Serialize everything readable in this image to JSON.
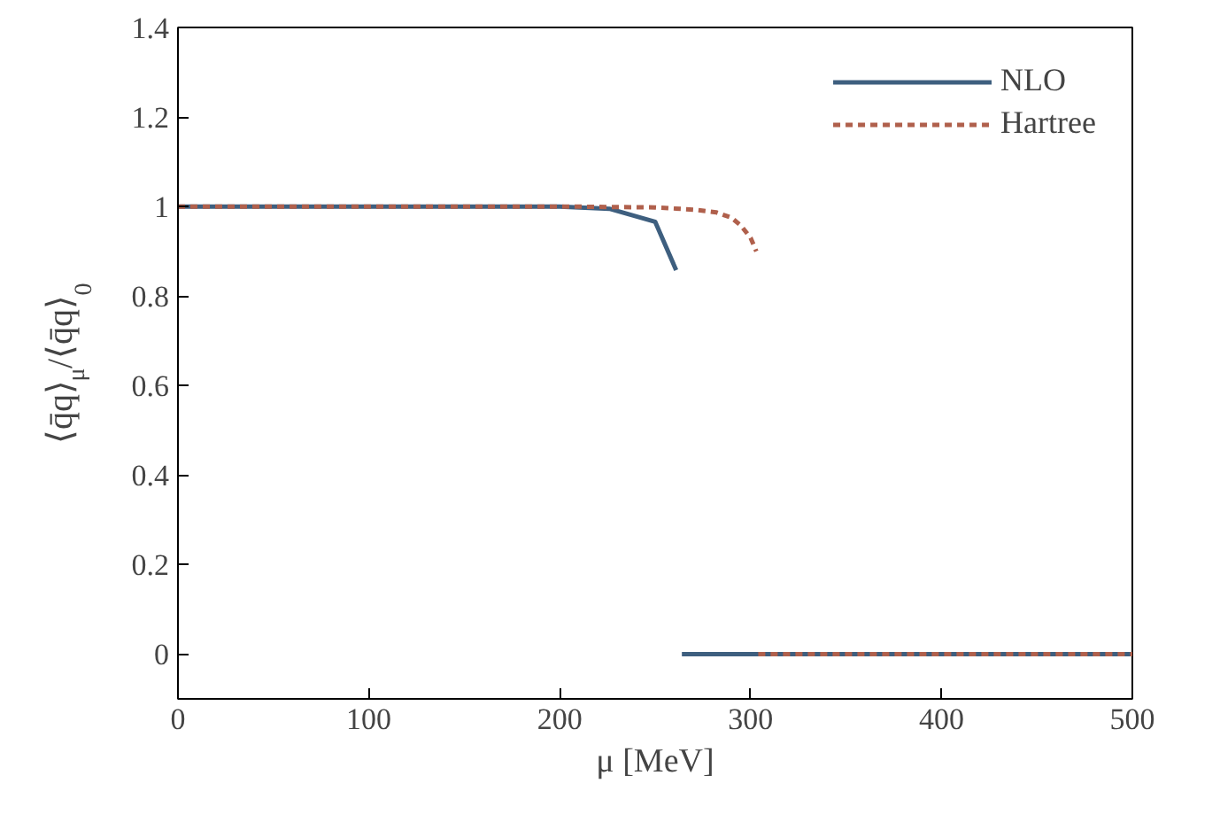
{
  "chart_data": {
    "type": "line",
    "xlabel": "μ [MeV]",
    "ylabel": "⟨q̄q⟩$_{μ}$/⟨q̄q⟩$_{0}$",
    "series": [
      {
        "name": "NLO",
        "color": "#3e5f7f",
        "line_style": "solid",
        "x": [
          0,
          100,
          200,
          226,
          250,
          261,
          null,
          264,
          500
        ],
        "values": [
          1,
          1,
          1,
          0.995,
          0.966,
          0.858,
          null,
          0,
          0
        ]
      },
      {
        "name": "Hartree",
        "color": "#b0604c",
        "line_style": "dashed",
        "x": [
          0,
          100,
          200,
          250,
          270,
          282,
          290,
          295,
          300,
          303,
          null,
          304,
          500
        ],
        "values": [
          1,
          1,
          1,
          0.998,
          0.993,
          0.987,
          0.975,
          0.957,
          0.93,
          0.9,
          null,
          0,
          0
        ]
      }
    ],
    "xlim": [
      0,
      500
    ],
    "ylim": [
      -0.1,
      1.4
    ],
    "xticks": [
      0,
      100,
      200,
      300,
      400,
      500
    ],
    "yticks": [
      0,
      0.2,
      0.4,
      0.6,
      0.8,
      1,
      1.2,
      1.4
    ],
    "grid": false,
    "legend": "top right",
    "marker": "none"
  }
}
